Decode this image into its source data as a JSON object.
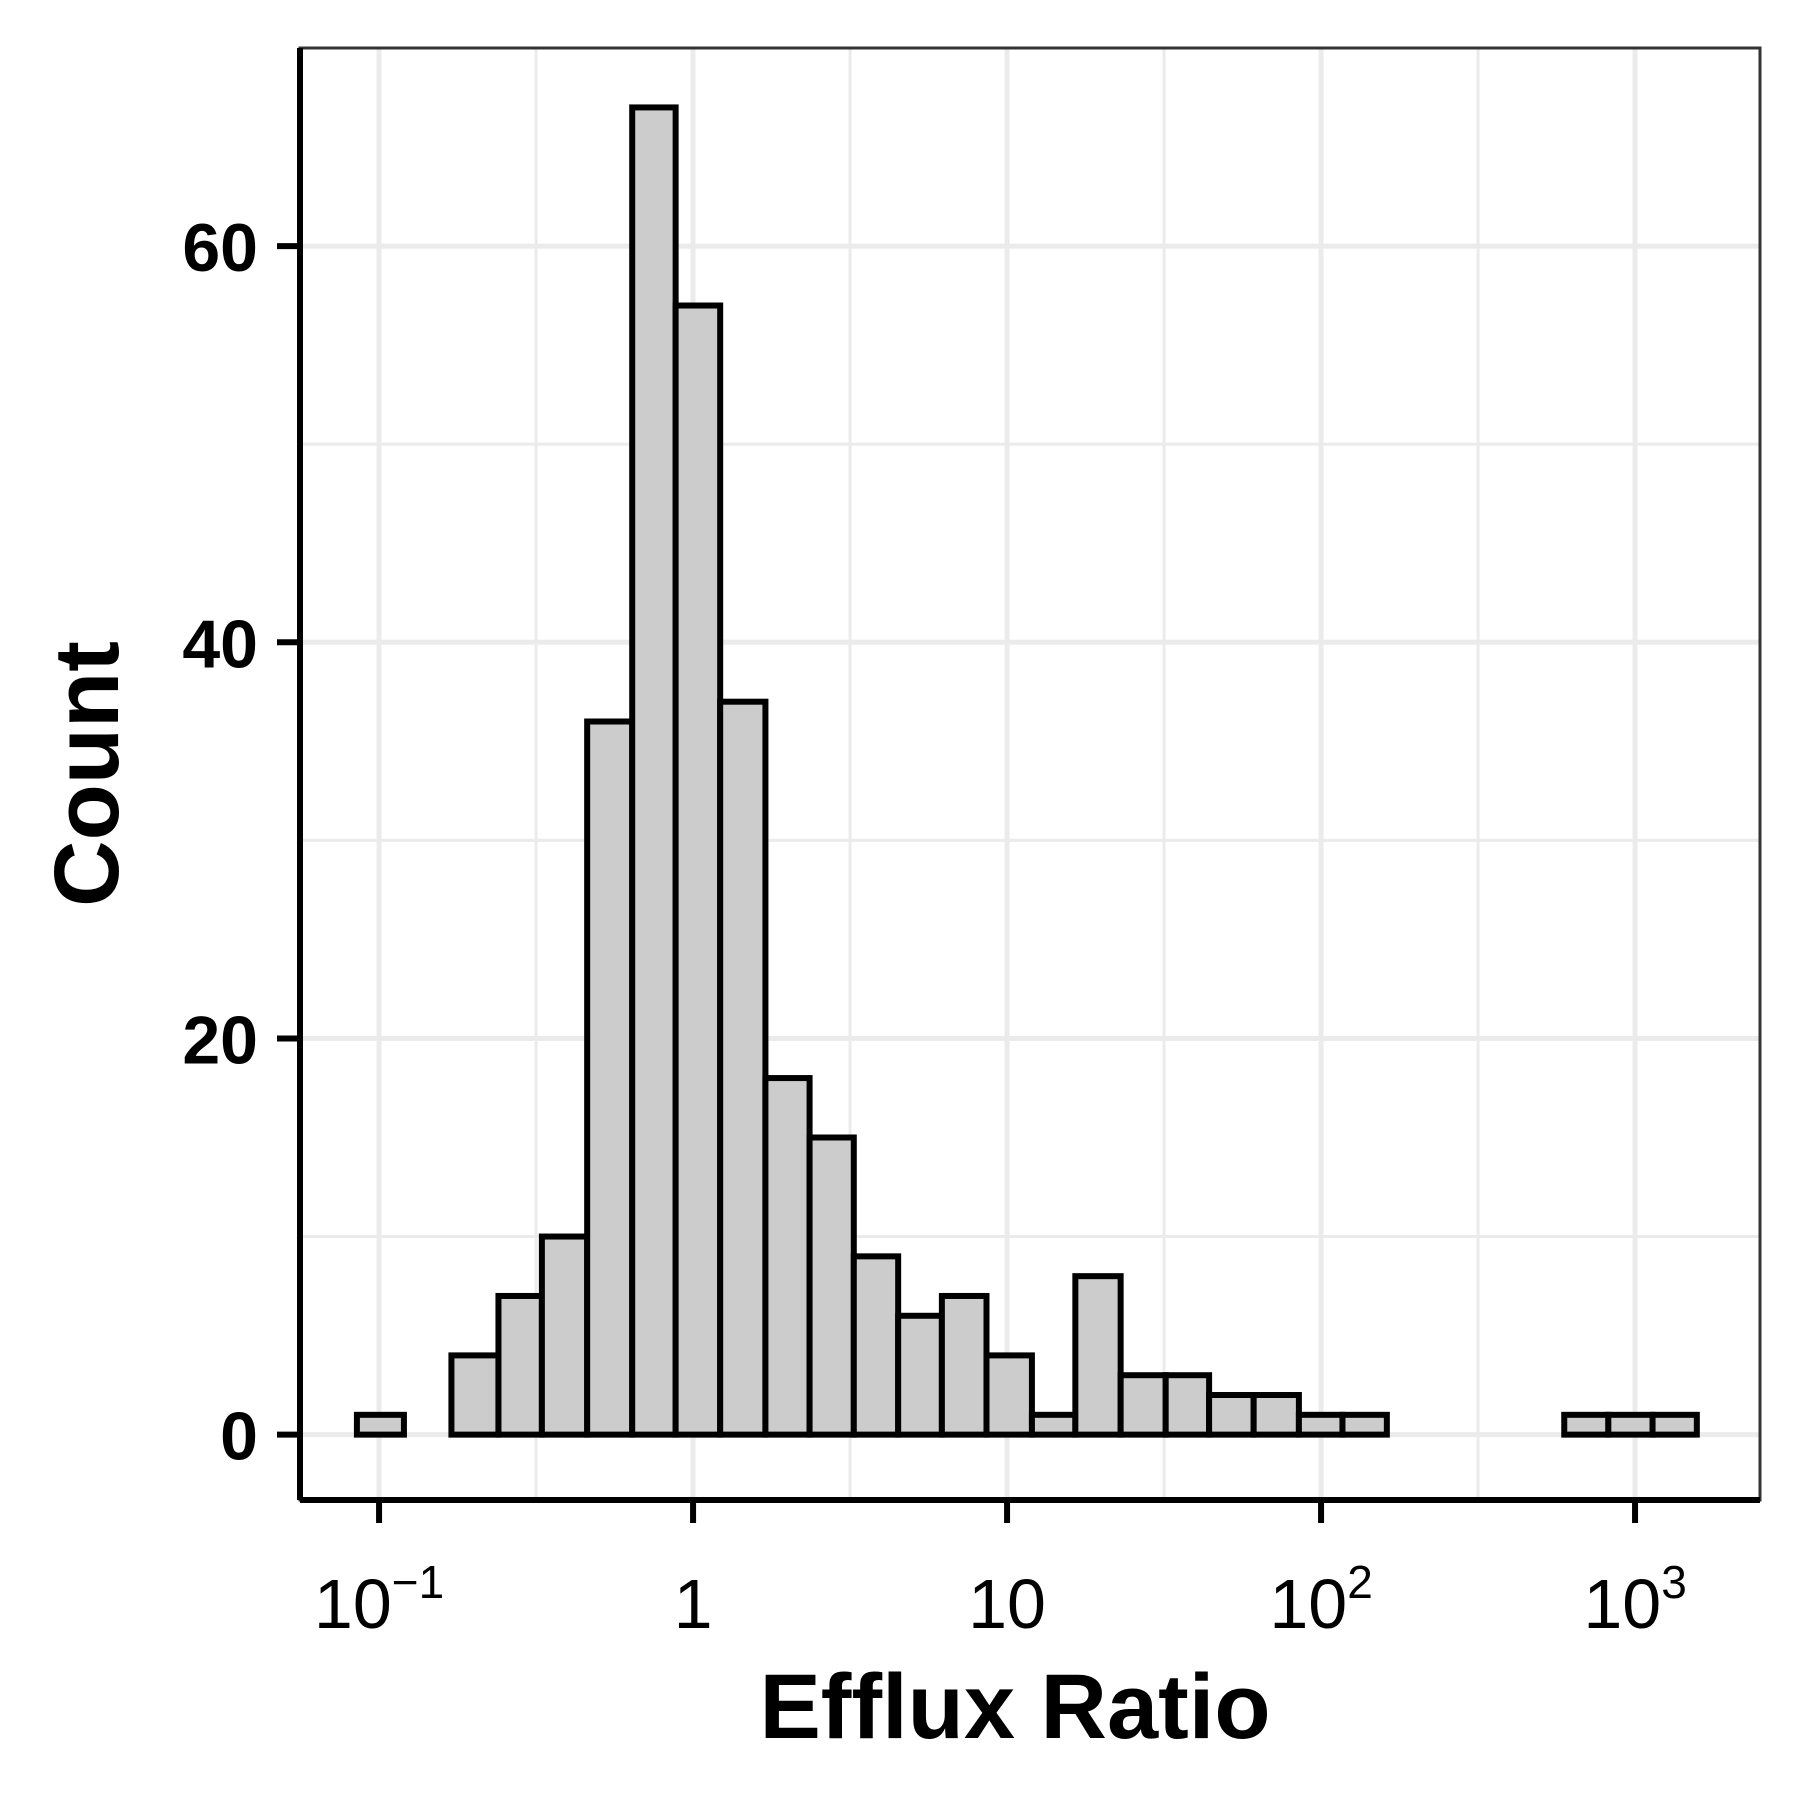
{
  "chart_data": {
    "type": "bar",
    "xlabel": "Efflux Ratio",
    "ylabel": "Count",
    "x_scale": "log10",
    "xlim": [
      0.056,
      2500
    ],
    "ylim": [
      -3.3,
      70
    ],
    "grid": true,
    "legend": "none",
    "bar_fill": "#cccccc",
    "bar_stroke": "#000000",
    "grid_color": "#ebebeb",
    "x_ticks": [
      {
        "value": 0.1,
        "base": "10",
        "exp": "−1"
      },
      {
        "value": 1,
        "base": "1",
        "exp": ""
      },
      {
        "value": 10,
        "base": "10",
        "exp": ""
      },
      {
        "value": 100,
        "base": "10",
        "exp": "2"
      },
      {
        "value": 1000,
        "base": "10",
        "exp": "3"
      }
    ],
    "y_ticks": [
      0,
      20,
      40,
      60
    ],
    "bins": [
      {
        "x0": 0.085,
        "x1": 0.12,
        "count": 1
      },
      {
        "x0": 0.12,
        "x1": 0.17,
        "count": 0
      },
      {
        "x0": 0.17,
        "x1": 0.24,
        "count": 4
      },
      {
        "x0": 0.24,
        "x1": 0.33,
        "count": 7
      },
      {
        "x0": 0.33,
        "x1": 0.46,
        "count": 10
      },
      {
        "x0": 0.46,
        "x1": 0.64,
        "count": 36
      },
      {
        "x0": 0.64,
        "x1": 0.88,
        "count": 67
      },
      {
        "x0": 0.88,
        "x1": 1.22,
        "count": 57
      },
      {
        "x0": 1.22,
        "x1": 1.7,
        "count": 37
      },
      {
        "x0": 1.7,
        "x1": 2.35,
        "count": 18
      },
      {
        "x0": 2.35,
        "x1": 3.25,
        "count": 15
      },
      {
        "x0": 3.25,
        "x1": 4.5,
        "count": 9
      },
      {
        "x0": 4.5,
        "x1": 6.2,
        "count": 6
      },
      {
        "x0": 6.2,
        "x1": 8.6,
        "count": 7
      },
      {
        "x0": 8.6,
        "x1": 12,
        "count": 4
      },
      {
        "x0": 12,
        "x1": 16.5,
        "count": 1
      },
      {
        "x0": 16.5,
        "x1": 23,
        "count": 8
      },
      {
        "x0": 23,
        "x1": 32,
        "count": 3
      },
      {
        "x0": 32,
        "x1": 44,
        "count": 3
      },
      {
        "x0": 44,
        "x1": 61,
        "count": 2
      },
      {
        "x0": 61,
        "x1": 85,
        "count": 2
      },
      {
        "x0": 85,
        "x1": 117,
        "count": 1
      },
      {
        "x0": 117,
        "x1": 162,
        "count": 1
      },
      {
        "x0": 162,
        "x1": 224,
        "count": 0
      },
      {
        "x0": 224,
        "x1": 310,
        "count": 0
      },
      {
        "x0": 310,
        "x1": 430,
        "count": 0
      },
      {
        "x0": 430,
        "x1": 595,
        "count": 0
      },
      {
        "x0": 595,
        "x1": 822,
        "count": 1
      },
      {
        "x0": 822,
        "x1": 1137,
        "count": 1
      },
      {
        "x0": 1137,
        "x1": 1573,
        "count": 1
      }
    ]
  }
}
